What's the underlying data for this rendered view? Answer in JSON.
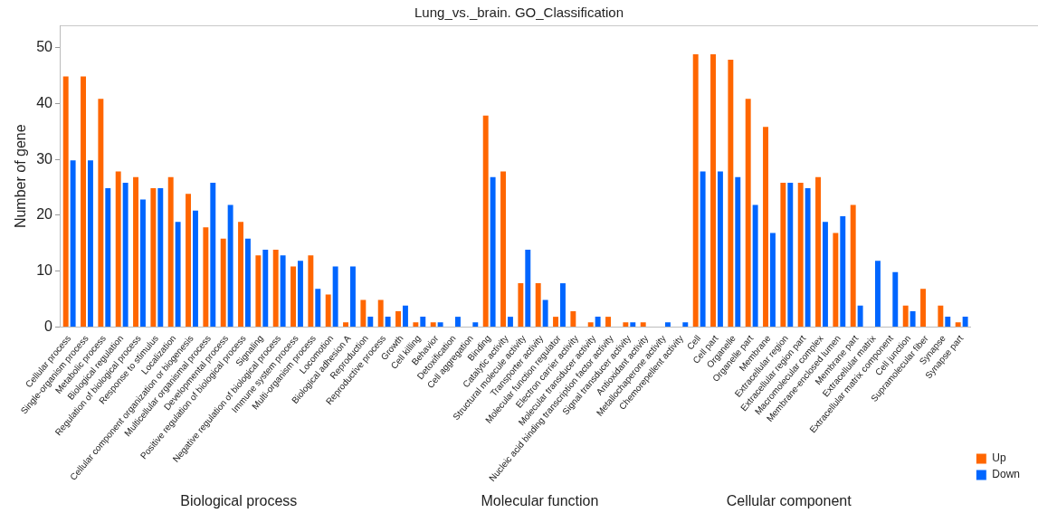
{
  "chart_data": {
    "type": "bar",
    "title": "Lung_vs._brain. GO_Classification",
    "ylabel": "Number of gene",
    "categories": [
      "Cellular process",
      "Single-organism process",
      "Metabolic process",
      "Biological regulation",
      "Regulation of biological process",
      "Response to stimulus",
      "Localization",
      "Cellular component organization or biogenesis",
      "Multicellular organismal process",
      "Developmental process",
      "Positive regulation of biological process",
      "Signaling",
      "Negative regulation of biological process",
      "Immune system process",
      "Multi-organism process",
      "Locomotion",
      "Biological adhesion A",
      "Reproduction",
      "Reproductive process",
      "Growth",
      "Cell killing",
      "Behavior",
      "Detoxification",
      "Cell aggregation",
      "Binding",
      "Catalytic activity",
      "Structural molecule activity",
      "Transporter activity",
      "Molecular function regulator",
      "Electron carrier activity",
      "Molecular transducer activity",
      "Nucleic acid binding transcription factor activity",
      "Signal transducer activity",
      "Antioxidant activity",
      "Metallochaperone activity",
      "Chemorepellent activity",
      "Cell",
      "Cell part",
      "Organelle",
      "Organelle part",
      "Membrane",
      "Extracellular region",
      "Extracellular region part",
      "Macromolecular complex",
      "Membrane-enclosed lumen",
      "Membrane part",
      "Extracellular matrix",
      "Extracellular matrix component",
      "Cell junction",
      "Supramolecular fiber",
      "Synapse",
      "Synapse part"
    ],
    "series": [
      {
        "name": "Up",
        "color": "#ff6600",
        "values": [
          45,
          45,
          41,
          28,
          27,
          25,
          27,
          24,
          18,
          16,
          19,
          13,
          14,
          11,
          13,
          6,
          1,
          5,
          5,
          3,
          1,
          1,
          0,
          0,
          38,
          28,
          8,
          8,
          2,
          3,
          1,
          2,
          1,
          1,
          0,
          0,
          49,
          49,
          48,
          41,
          36,
          26,
          26,
          27,
          17,
          22,
          0,
          0,
          4,
          7,
          4,
          1
        ]
      },
      {
        "name": "Down",
        "color": "#0066ff",
        "values": [
          30,
          30,
          25,
          26,
          23,
          25,
          19,
          21,
          26,
          22,
          16,
          14,
          13,
          12,
          7,
          11,
          11,
          2,
          2,
          4,
          2,
          1,
          2,
          1,
          27,
          2,
          14,
          5,
          8,
          0,
          2,
          0,
          1,
          0,
          1,
          1,
          28,
          28,
          27,
          22,
          17,
          26,
          25,
          19,
          20,
          4,
          12,
          10,
          3,
          0,
          2,
          2
        ]
      }
    ],
    "ylim": [
      0,
      54
    ],
    "yticks": [
      0,
      10,
      20,
      30,
      40,
      50
    ],
    "grid": false,
    "legend": "bottom right",
    "annotations": [
      "Biological process",
      "Molecular function",
      "Cellular component"
    ]
  }
}
